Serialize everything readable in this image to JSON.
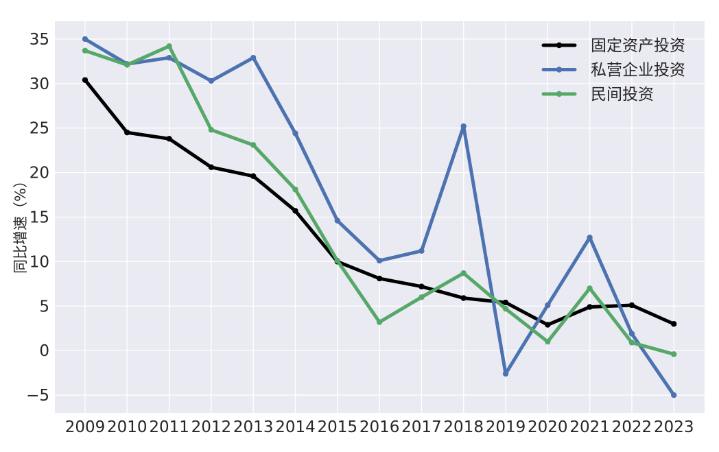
{
  "chart_data": {
    "type": "line",
    "title": "",
    "xlabel": "",
    "ylabel": "同比增速（%）",
    "categories": [
      "2009",
      "2010",
      "2011",
      "2012",
      "2013",
      "2014",
      "2015",
      "2016",
      "2017",
      "2018",
      "2019",
      "2020",
      "2021",
      "2022",
      "2023"
    ],
    "ylim": [
      -7,
      37
    ],
    "yticks": [
      -5,
      0,
      5,
      10,
      15,
      20,
      25,
      30,
      35
    ],
    "ytick_labels": [
      "−5",
      "0",
      "5",
      "10",
      "15",
      "20",
      "25",
      "30",
      "35"
    ],
    "grid": true,
    "legend_position": "top-right",
    "background_color": "#eaeaf2",
    "grid_color": "#ffffff",
    "series": [
      {
        "name": "固定资产投资",
        "color": "#000000",
        "values": [
          30.4,
          24.5,
          23.8,
          20.6,
          19.6,
          15.7,
          10.0,
          8.1,
          7.2,
          5.9,
          5.4,
          2.9,
          4.9,
          5.1,
          3.0
        ]
      },
      {
        "name": "私营企业投资",
        "color": "#4c72b0",
        "values": [
          35.0,
          32.2,
          32.9,
          30.3,
          32.9,
          24.4,
          14.6,
          10.1,
          11.2,
          25.2,
          -2.6,
          5.1,
          12.7,
          1.9,
          -5.0
        ]
      },
      {
        "name": "民间投资",
        "color": "#55a868",
        "values": [
          33.7,
          32.1,
          34.2,
          24.8,
          23.1,
          18.1,
          10.1,
          3.2,
          6.0,
          8.7,
          4.7,
          1.0,
          7.0,
          0.9,
          -0.4
        ]
      }
    ]
  }
}
